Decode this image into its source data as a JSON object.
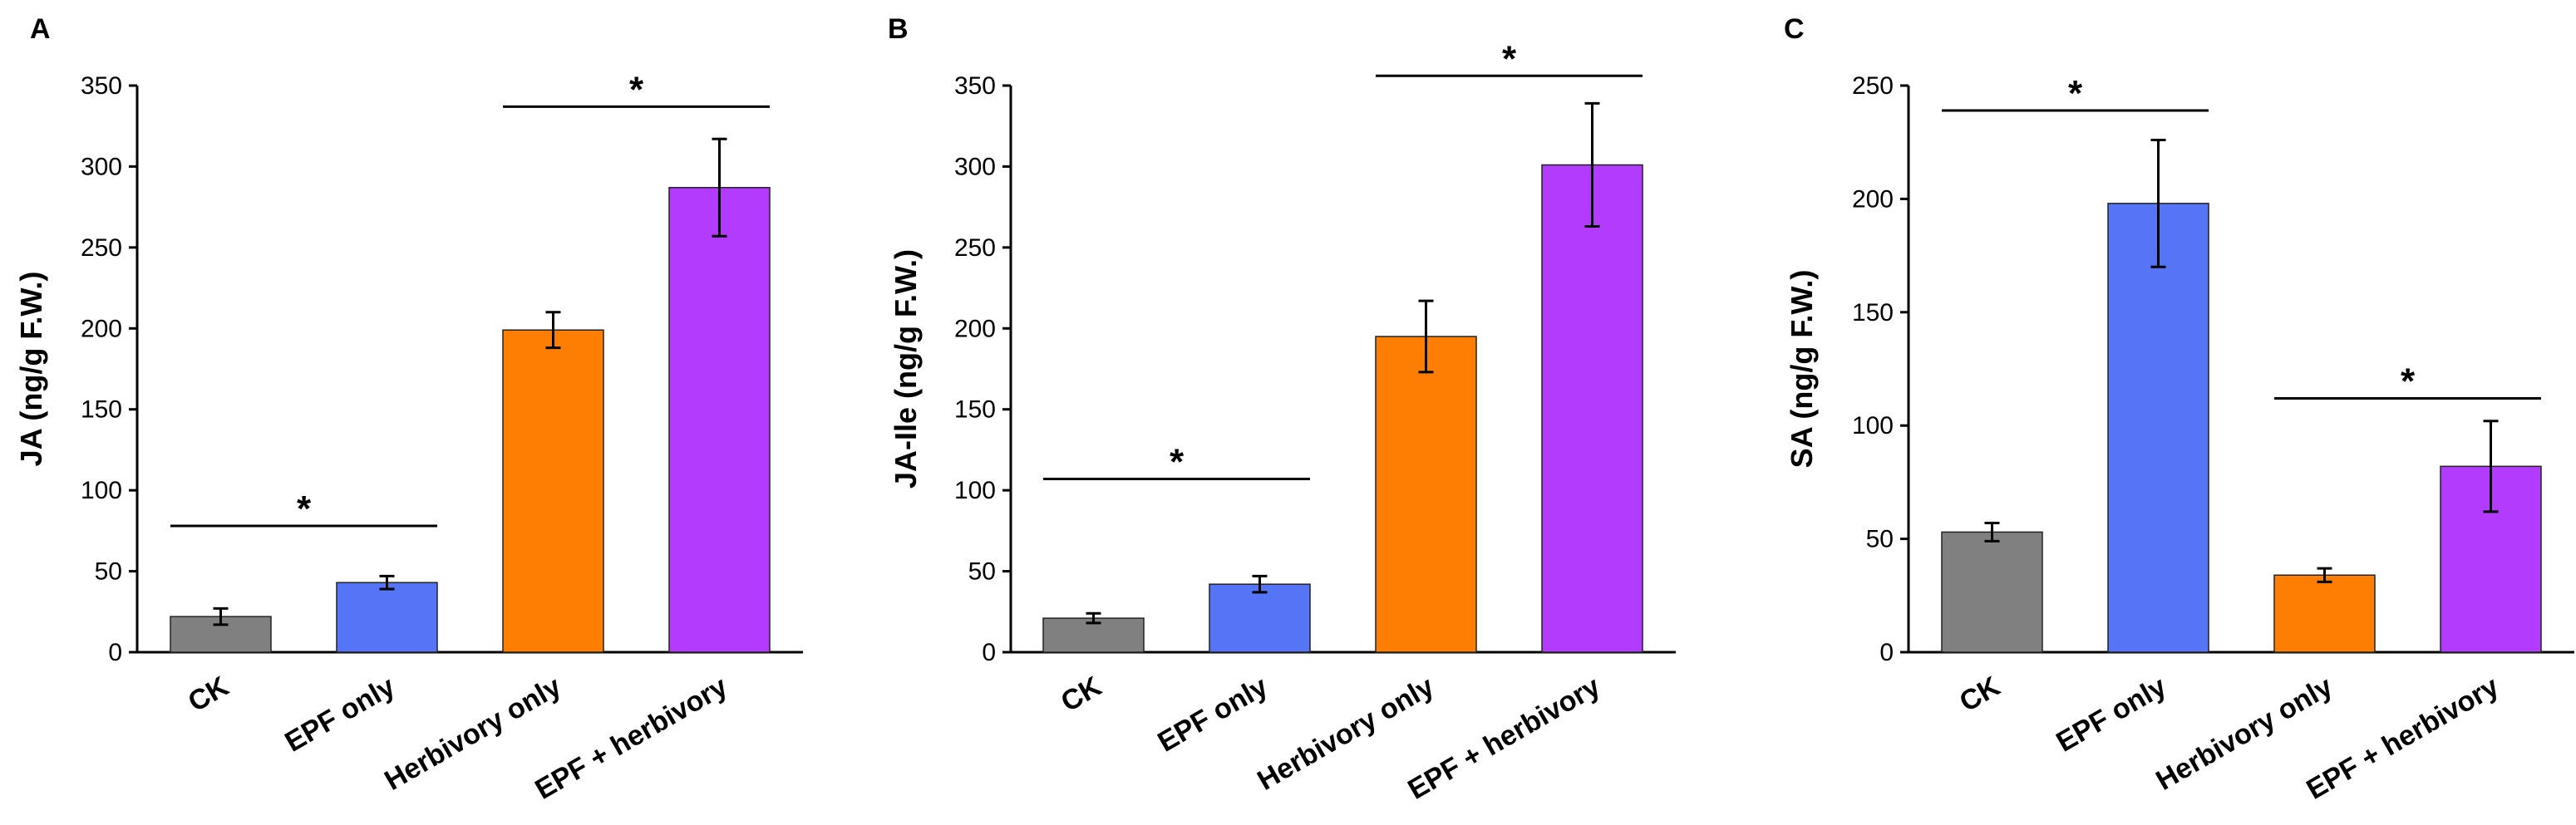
{
  "colors": {
    "CK": "#808080",
    "EPF only": "#5575f6",
    "Herbivory only": "#fd7e02",
    "EPF + herbivory": "#b33bfd"
  },
  "chart_data": [
    {
      "type": "bar",
      "panel": "A",
      "categories": [
        "CK",
        "EPF only",
        "Herbivory only",
        "EPF + herbivory"
      ],
      "values": [
        22,
        43,
        199,
        287
      ],
      "errors": [
        5,
        4,
        11,
        30
      ],
      "ylabel": "JA (ng/g F.W.)",
      "ylim": [
        0,
        350
      ],
      "yticks": [
        0,
        50,
        100,
        150,
        200,
        250,
        300,
        350
      ],
      "significance": [
        {
          "from": 0,
          "to": 1,
          "level": 78,
          "label": "*"
        },
        {
          "from": 2,
          "to": 3,
          "level": 337,
          "label": "*"
        }
      ]
    },
    {
      "type": "bar",
      "panel": "B",
      "categories": [
        "CK",
        "EPF only",
        "Herbivory only",
        "EPF + herbivory"
      ],
      "values": [
        21,
        42,
        195,
        301
      ],
      "errors": [
        3,
        5,
        22,
        38
      ],
      "ylabel": "JA-Ile (ng/g F.W.)",
      "ylim": [
        0,
        350
      ],
      "yticks": [
        0,
        50,
        100,
        150,
        200,
        250,
        300,
        350
      ],
      "significance": [
        {
          "from": 0,
          "to": 1,
          "level": 107,
          "label": "*"
        },
        {
          "from": 2,
          "to": 3,
          "level": 356,
          "label": "*"
        }
      ]
    },
    {
      "type": "bar",
      "panel": "C",
      "categories": [
        "CK",
        "EPF only",
        "Herbivory only",
        "EPF + herbivory"
      ],
      "values": [
        53,
        198,
        34,
        82
      ],
      "errors": [
        4,
        28,
        3,
        20
      ],
      "ylabel": "SA (ng/g F.W.)",
      "ylim": [
        0,
        250
      ],
      "yticks": [
        0,
        50,
        100,
        150,
        200,
        250
      ],
      "significance": [
        {
          "from": 0,
          "to": 1,
          "level": 239,
          "label": "*"
        },
        {
          "from": 2,
          "to": 3,
          "level": 112,
          "label": "*"
        }
      ]
    }
  ]
}
